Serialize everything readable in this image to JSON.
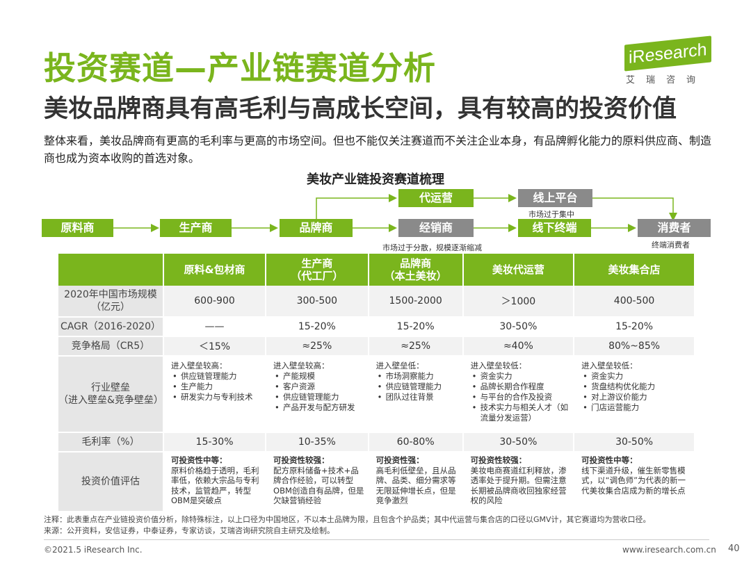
{
  "header": {
    "title": "投资赛道—产业链赛道分析",
    "subtitle": "美妆品牌商具有高毛利与高成长空间，具有较高的投资价值",
    "logo_text": "iResearch",
    "logo_sub": "艾瑞咨询"
  },
  "intro": "整体来看，美妆品牌商有更高的毛利率与更高的市场空间。但也不能仅关注赛道而不关注企业本身，有品牌孵化能力的原料供应商、制造商也成为资本收购的首选对象。",
  "diagram": {
    "title": "美妆产业链投资赛道梳理",
    "nodes": {
      "raw": "原料商",
      "producer": "生产商",
      "brand": "品牌商",
      "agency": "代运营",
      "distributor": "经销商",
      "online": "线上平台",
      "offline": "线下终端",
      "consumer": "消费者"
    },
    "notes": {
      "online": "市场过于集中",
      "distributor": "市场过于分散，规模逐渐缩减",
      "consumer": "终端消费者"
    }
  },
  "table": {
    "headers": [
      "原料&包材商",
      "生产商\n（代工厂）",
      "品牌商\n（本土美妆）",
      "美妆代运营",
      "美妆集合店"
    ],
    "rows": {
      "market_size": {
        "label": "2020年中国市场规模\n（亿元）",
        "values": [
          "600-900",
          "300-500",
          "1500-2000",
          "＞1000",
          "400-500"
        ]
      },
      "cagr": {
        "label": "CAGR（2016-2020）",
        "values": [
          "——",
          "15-20%",
          "15-20%",
          "30-50%",
          "15-20%"
        ]
      },
      "competition": {
        "label": "竞争格局（CR5）",
        "values": [
          "＜15%",
          "≈25%",
          "≈25%",
          "≈40%",
          "80%~85%"
        ]
      },
      "barrier": {
        "label": "行业壁垒\n（进入壁垒&竞争壁垒）",
        "cells": [
          {
            "head": "进入壁垒较高：",
            "items": [
              "供应链管理能力",
              "生产能力",
              "研发实力与专利技术"
            ]
          },
          {
            "head": "进入壁垒较高：",
            "items": [
              "产能规模",
              "客户资源",
              "供应链管理能力",
              "产品开发与配方研发"
            ]
          },
          {
            "head": "进入壁垒低：",
            "items": [
              "市场洞察能力",
              "供应链管理能力",
              "团队过往背景"
            ]
          },
          {
            "head": "进入壁垒较低：",
            "items": [
              "资金实力",
              "品牌长期合作程度",
              "与平台的合作及投资",
              "技术实力与相关人才（如流量分发运营）"
            ]
          },
          {
            "head": "进入壁垒较低：",
            "items": [
              "资金实力",
              "货盘结构优化能力",
              "对上游议价能力",
              "门店运营能力"
            ]
          }
        ]
      },
      "margin": {
        "label": "毛利率（%）",
        "values": [
          "15-30%",
          "10-35%",
          "60-80%",
          "30-50%",
          "30-50%"
        ]
      },
      "evaluation": {
        "label": "投资价值评估",
        "cells": [
          {
            "head": "可投资性中等：",
            "text": "原料价格趋于透明，毛利率低，依赖大宗品与专利技术，监管趋严，转型OBM是突破点"
          },
          {
            "head": "可投资性较强：",
            "text": "配方原料储备+技术+品牌合作经验，可以转型OBM创造自有品牌，但是欠缺营销经验"
          },
          {
            "head": "可投资性强：",
            "text": "高毛利低壁垒，且从品牌、品类、细分需求等无限延伸增长点，但是竞争激烈"
          },
          {
            "head": "可投资性较强：",
            "text": "美妆电商赛道红利释放，渗透率处于提升期。但需注意长期被品牌商收回独家经营权的风险"
          },
          {
            "head": "可投资性中等：",
            "text": "线下渠道升级，催生新零售模式，以“调色师”为代表的新一代美妆集合店成为新的增长点"
          }
        ]
      }
    }
  },
  "footer": {
    "note": "注释：此表重点在产业链投资价值分析，除特殊标注，以上口径为中国地区，不以本土品牌为限，且包含个护品类；其中代运营与集合店的口径以GMV计，其它赛道均为营收口径。",
    "source": "来源：公开资料，安信证券，中泰证券，专家访谈，艾瑞咨询研究院自主研究及绘制。",
    "copyright": "©2021.5 iResearch Inc.",
    "url": "www.iresearch.com.cn",
    "page": "40"
  },
  "colors": {
    "accent": "#7ab51d",
    "gray": "#8a8a8a"
  }
}
